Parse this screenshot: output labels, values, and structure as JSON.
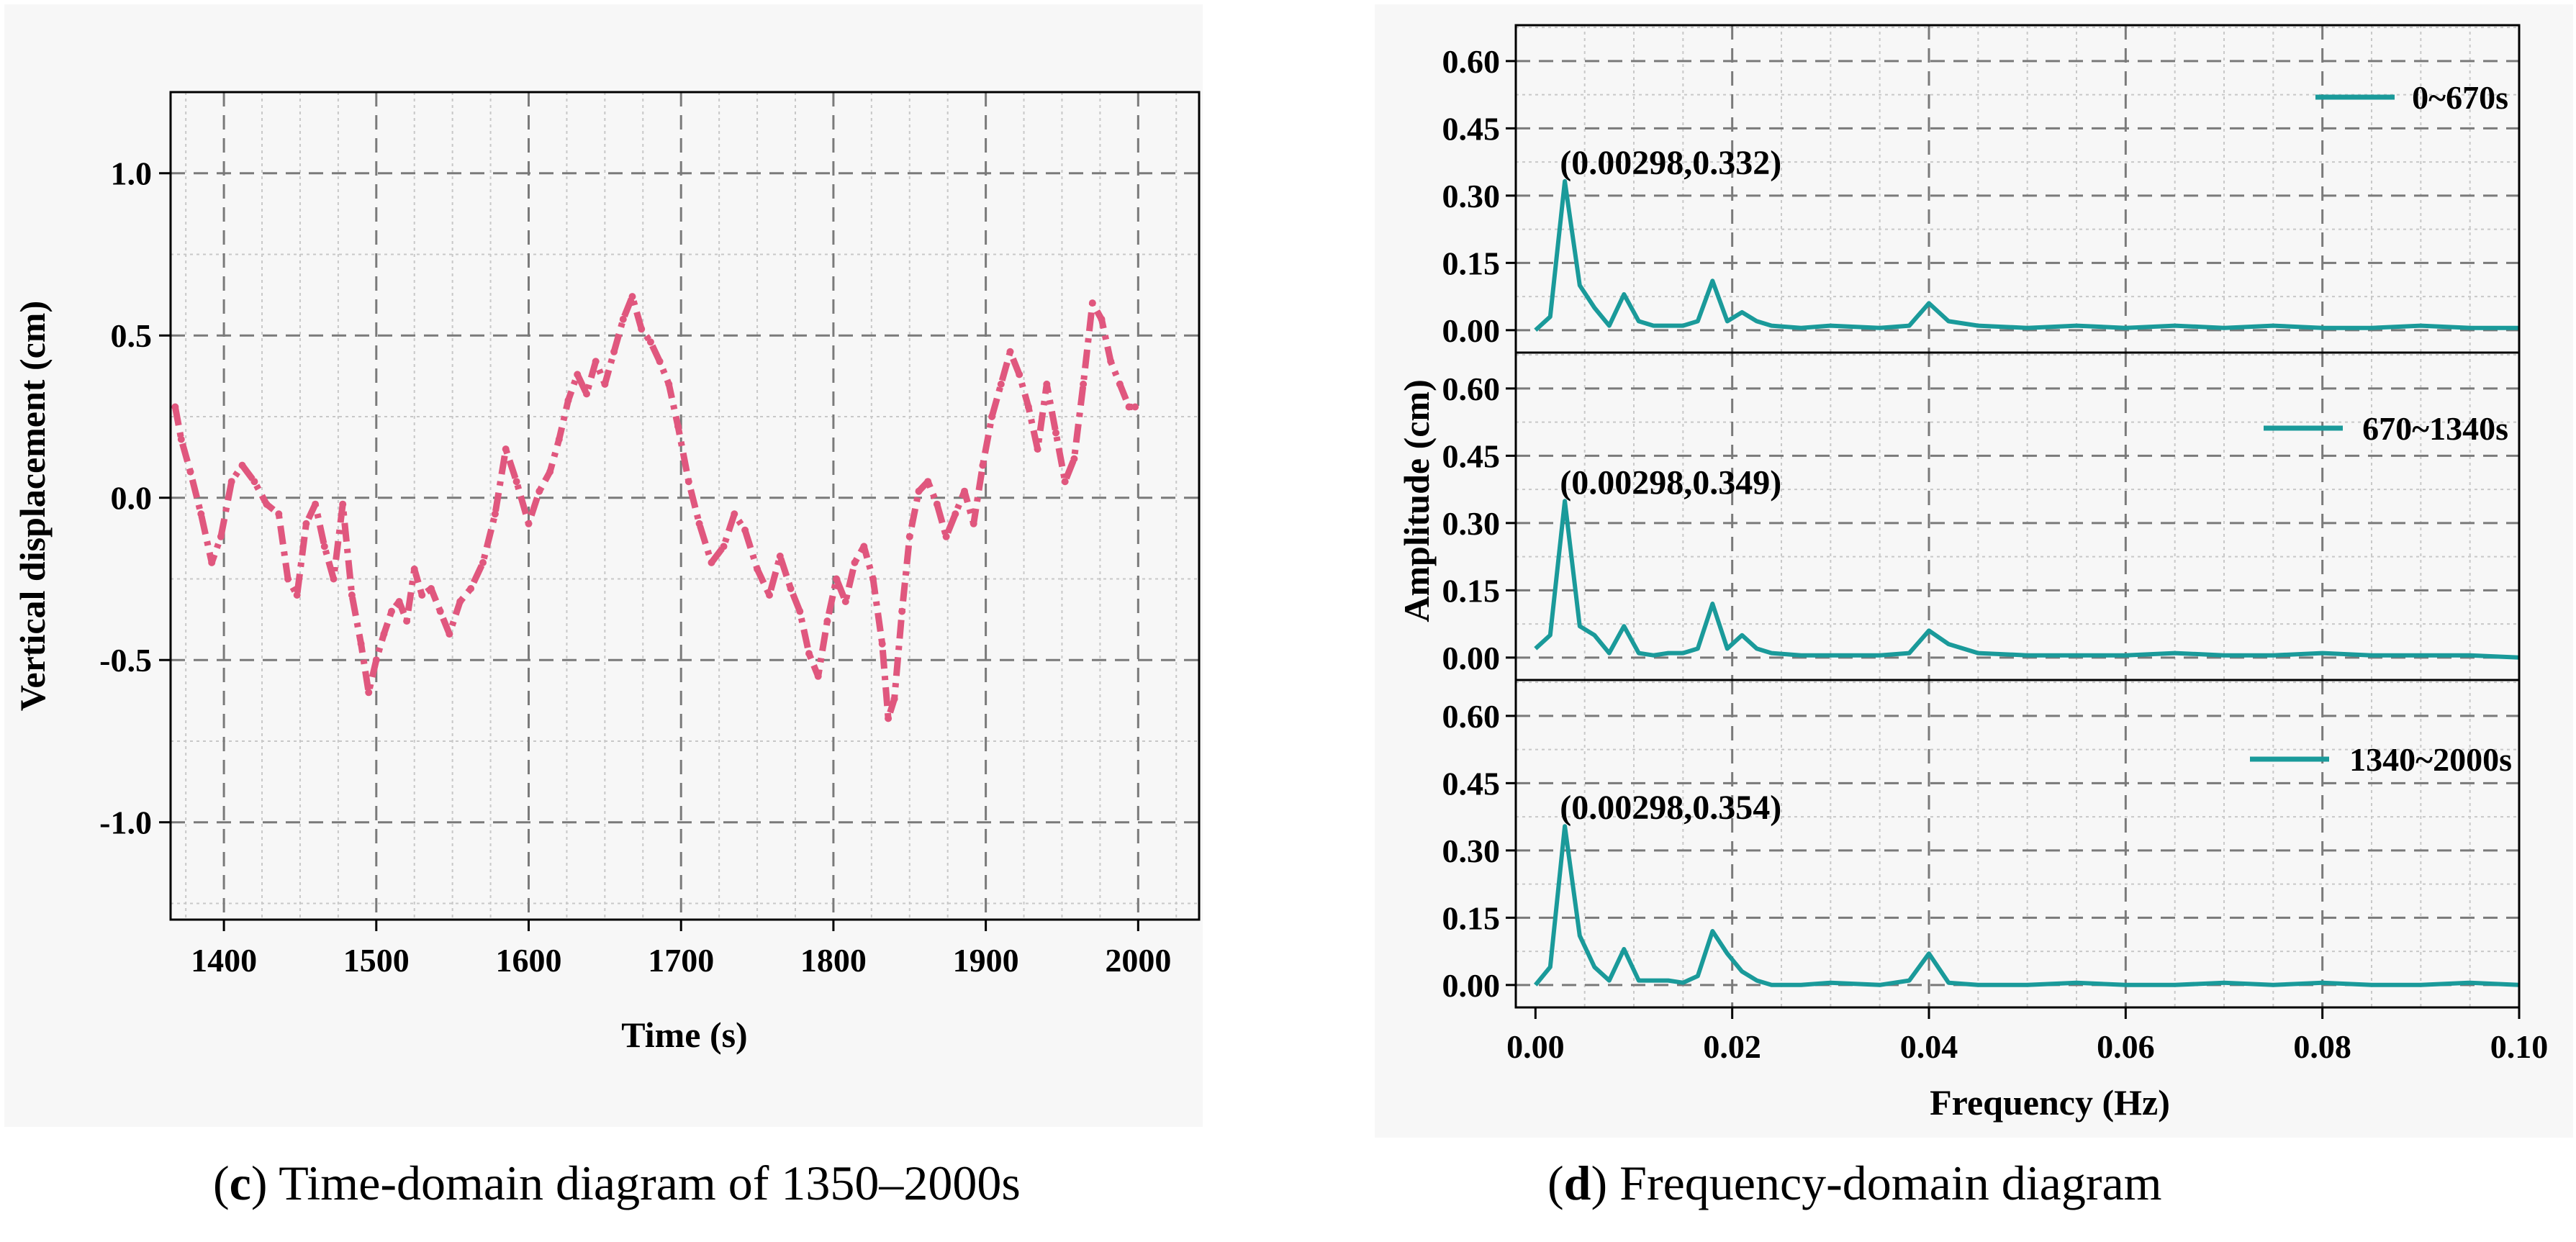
{
  "colors": {
    "time_series": "#e0577e",
    "freq_series": "#1a9a9a",
    "grid_major": "#7a7a7a",
    "grid_minor": "#c8c8c8"
  },
  "captions": {
    "c": {
      "letter": "c",
      "text": "Time-domain diagram of 1350–2000s"
    },
    "d": {
      "letter": "d",
      "text": "Frequency-domain diagram"
    }
  },
  "chart_data": [
    {
      "id": "c",
      "type": "line",
      "style": "dash-dot",
      "title": "",
      "xlabel": "Time (s)",
      "ylabel": "Vertical displacement (cm)",
      "xlim": [
        1365,
        2040
      ],
      "ylim": [
        -1.3,
        1.25
      ],
      "xticks": [
        1400,
        1500,
        1600,
        1700,
        1800,
        1900,
        2000
      ],
      "yticks": [
        1.0,
        0.5,
        0.0,
        -0.5,
        -1.0
      ],
      "ytick_labels": [
        "1.0",
        "0.5",
        "0.0",
        "-0.5",
        "-1.0"
      ],
      "grid": true,
      "series": [
        {
          "name": "vertical displacement",
          "x": [
            1368,
            1372,
            1378,
            1385,
            1392,
            1398,
            1405,
            1412,
            1420,
            1428,
            1436,
            1442,
            1448,
            1454,
            1460,
            1466,
            1472,
            1478,
            1484,
            1490,
            1495,
            1500,
            1505,
            1510,
            1515,
            1520,
            1525,
            1530,
            1536,
            1542,
            1548,
            1555,
            1562,
            1570,
            1578,
            1585,
            1592,
            1600,
            1607,
            1614,
            1620,
            1626,
            1632,
            1638,
            1644,
            1650,
            1656,
            1662,
            1668,
            1674,
            1680,
            1686,
            1692,
            1698,
            1705,
            1712,
            1720,
            1728,
            1735,
            1742,
            1750,
            1758,
            1765,
            1772,
            1778,
            1784,
            1790,
            1796,
            1802,
            1808,
            1814,
            1820,
            1826,
            1832,
            1836,
            1840,
            1845,
            1850,
            1856,
            1862,
            1868,
            1874,
            1880,
            1886,
            1892,
            1898,
            1904,
            1910,
            1916,
            1922,
            1928,
            1934,
            1940,
            1946,
            1952,
            1958,
            1964,
            1970,
            1976,
            1982,
            1988,
            1994,
            1998
          ],
          "y": [
            0.28,
            0.18,
            0.08,
            -0.05,
            -0.2,
            -0.12,
            0.05,
            0.1,
            0.05,
            -0.02,
            -0.05,
            -0.25,
            -0.3,
            -0.08,
            -0.02,
            -0.15,
            -0.25,
            -0.02,
            -0.3,
            -0.45,
            -0.6,
            -0.5,
            -0.42,
            -0.35,
            -0.32,
            -0.38,
            -0.22,
            -0.3,
            -0.28,
            -0.35,
            -0.42,
            -0.32,
            -0.28,
            -0.2,
            -0.05,
            0.15,
            0.05,
            -0.08,
            0.02,
            0.08,
            0.18,
            0.3,
            0.38,
            0.32,
            0.42,
            0.35,
            0.45,
            0.55,
            0.62,
            0.52,
            0.48,
            0.42,
            0.35,
            0.22,
            0.05,
            -0.08,
            -0.2,
            -0.15,
            -0.05,
            -0.1,
            -0.22,
            -0.3,
            -0.18,
            -0.28,
            -0.35,
            -0.48,
            -0.55,
            -0.38,
            -0.25,
            -0.32,
            -0.2,
            -0.15,
            -0.25,
            -0.45,
            -0.68,
            -0.62,
            -0.35,
            -0.12,
            0.02,
            0.05,
            -0.02,
            -0.12,
            -0.05,
            0.02,
            -0.08,
            0.1,
            0.25,
            0.35,
            0.45,
            0.38,
            0.28,
            0.15,
            0.35,
            0.2,
            0.05,
            0.12,
            0.35,
            0.6,
            0.55,
            0.42,
            0.35,
            0.28,
            0.28
          ]
        }
      ]
    },
    {
      "id": "d",
      "type": "line",
      "title": "",
      "xlabel": "Frequency (Hz)",
      "ylabel": "Amplitude (cm)",
      "xlim": [
        -0.002,
        0.1
      ],
      "xticks": [
        0.0,
        0.02,
        0.04,
        0.06,
        0.08,
        0.1
      ],
      "xtick_labels": [
        "0.00",
        "0.02",
        "0.04",
        "0.06",
        "0.08",
        "0.10"
      ],
      "ylim": [
        -0.05,
        0.68
      ],
      "yticks": [
        0.0,
        0.15,
        0.3,
        0.45,
        0.6
      ],
      "ytick_labels": [
        "0.00",
        "0.15",
        "0.30",
        "0.45",
        "0.60"
      ],
      "grid": true,
      "legend_position": "top-right",
      "panels": [
        {
          "name": "0~670s",
          "peak_label": "(0.00298,0.332)",
          "x": [
            0.0,
            0.0015,
            0.00298,
            0.0045,
            0.006,
            0.0075,
            0.009,
            0.0105,
            0.012,
            0.0135,
            0.015,
            0.0165,
            0.018,
            0.0195,
            0.021,
            0.0225,
            0.024,
            0.027,
            0.03,
            0.035,
            0.038,
            0.04,
            0.042,
            0.045,
            0.05,
            0.055,
            0.06,
            0.065,
            0.07,
            0.075,
            0.08,
            0.085,
            0.09,
            0.095,
            0.1
          ],
          "y": [
            0.0,
            0.03,
            0.332,
            0.1,
            0.05,
            0.01,
            0.08,
            0.02,
            0.01,
            0.01,
            0.01,
            0.02,
            0.11,
            0.02,
            0.04,
            0.02,
            0.01,
            0.005,
            0.01,
            0.005,
            0.01,
            0.06,
            0.02,
            0.01,
            0.005,
            0.01,
            0.005,
            0.01,
            0.005,
            0.01,
            0.005,
            0.005,
            0.01,
            0.005,
            0.005
          ]
        },
        {
          "name": "670~1340s",
          "peak_label": "(0.00298,0.349)",
          "x": [
            0.0,
            0.0015,
            0.00298,
            0.0045,
            0.006,
            0.0075,
            0.009,
            0.0105,
            0.012,
            0.0135,
            0.015,
            0.0165,
            0.018,
            0.0195,
            0.021,
            0.0225,
            0.024,
            0.027,
            0.03,
            0.035,
            0.038,
            0.04,
            0.042,
            0.045,
            0.05,
            0.055,
            0.06,
            0.065,
            0.07,
            0.075,
            0.08,
            0.085,
            0.09,
            0.095,
            0.1
          ],
          "y": [
            0.02,
            0.05,
            0.349,
            0.07,
            0.05,
            0.01,
            0.07,
            0.01,
            0.005,
            0.01,
            0.01,
            0.02,
            0.12,
            0.02,
            0.05,
            0.02,
            0.01,
            0.005,
            0.005,
            0.005,
            0.01,
            0.06,
            0.03,
            0.01,
            0.005,
            0.005,
            0.005,
            0.01,
            0.005,
            0.005,
            0.01,
            0.005,
            0.005,
            0.005,
            0.0
          ]
        },
        {
          "name": "1340~2000s",
          "peak_label": "(0.00298,0.354)",
          "x": [
            0.0,
            0.0015,
            0.00298,
            0.0045,
            0.006,
            0.0075,
            0.009,
            0.0105,
            0.012,
            0.0135,
            0.015,
            0.0165,
            0.018,
            0.0195,
            0.021,
            0.0225,
            0.024,
            0.027,
            0.03,
            0.035,
            0.038,
            0.04,
            0.042,
            0.045,
            0.05,
            0.055,
            0.06,
            0.065,
            0.07,
            0.075,
            0.08,
            0.085,
            0.09,
            0.095,
            0.1
          ],
          "y": [
            0.0,
            0.04,
            0.354,
            0.11,
            0.04,
            0.01,
            0.08,
            0.01,
            0.01,
            0.01,
            0.005,
            0.02,
            0.12,
            0.07,
            0.03,
            0.01,
            0.0,
            0.0,
            0.005,
            0.0,
            0.01,
            0.07,
            0.005,
            0.0,
            0.0,
            0.005,
            0.0,
            0.0,
            0.005,
            0.0,
            0.005,
            0.0,
            0.0,
            0.005,
            0.0
          ]
        }
      ]
    }
  ]
}
